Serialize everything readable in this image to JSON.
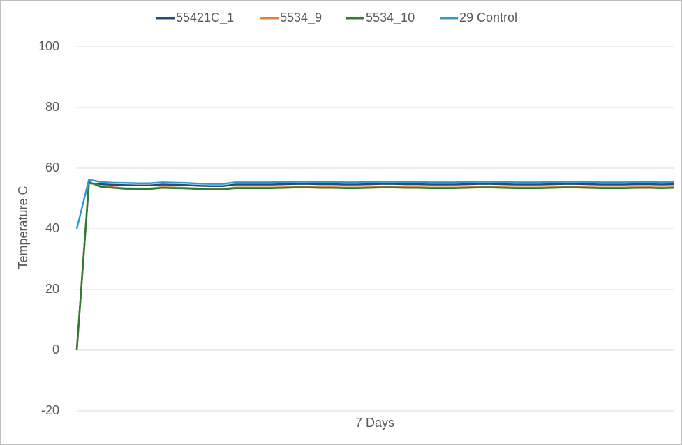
{
  "chart_data": {
    "type": "line",
    "y_label": "Temperature C",
    "x_label": "7 Days",
    "categories": [
      null,
      null,
      null,
      null,
      null,
      null,
      null,
      null,
      null,
      null,
      null,
      null,
      null,
      null,
      null,
      null,
      null,
      null,
      null,
      null,
      null,
      null,
      null,
      null,
      null,
      null,
      null,
      null,
      null,
      null,
      null,
      null,
      null,
      null,
      null,
      null,
      null,
      null,
      null,
      null,
      null,
      null,
      null,
      null,
      null,
      null,
      null,
      null,
      null,
      null
    ],
    "ylim": [
      -20,
      100
    ],
    "yticks": [
      -20,
      0,
      20,
      40,
      60,
      80,
      100
    ],
    "grid": true,
    "legend": "top",
    "series": [
      {
        "name": "55421C_1",
        "color": "#1f4e79",
        "values": [
          0,
          55,
          54.7,
          54.5,
          54.4,
          54.3,
          54.3,
          54.6,
          54.5,
          54.4,
          54.2,
          54.1,
          54.1,
          54.6,
          54.6,
          54.6,
          54.6,
          54.7,
          54.8,
          54.8,
          54.7,
          54.7,
          54.6,
          54.6,
          54.7,
          54.8,
          54.8,
          54.7,
          54.7,
          54.6,
          54.6,
          54.6,
          54.7,
          54.8,
          54.8,
          54.7,
          54.6,
          54.6,
          54.6,
          54.7,
          54.8,
          54.8,
          54.7,
          54.6,
          54.6,
          54.6,
          54.7,
          54.7,
          54.6,
          54.7
        ]
      },
      {
        "name": "5534_9",
        "color": "#ed7d31",
        "values": [
          0,
          55.3,
          54.0,
          53.7,
          53.4,
          53.3,
          53.3,
          53.7,
          53.6,
          53.5,
          53.3,
          53.2,
          53.2,
          53.6,
          53.6,
          53.6,
          53.6,
          53.7,
          53.8,
          53.8,
          53.7,
          53.7,
          53.6,
          53.6,
          53.7,
          53.8,
          53.8,
          53.7,
          53.7,
          53.6,
          53.6,
          53.6,
          53.7,
          53.8,
          53.8,
          53.7,
          53.6,
          53.6,
          53.6,
          53.7,
          53.8,
          53.8,
          53.7,
          53.6,
          53.6,
          53.6,
          53.7,
          53.7,
          53.6,
          53.7
        ]
      },
      {
        "name": "5534_10",
        "color": "#2e7d32",
        "values": [
          0,
          55.5,
          53.8,
          53.5,
          53.2,
          53.1,
          53.1,
          53.5,
          53.4,
          53.3,
          53.1,
          53.0,
          53.0,
          53.4,
          53.4,
          53.4,
          53.4,
          53.5,
          53.6,
          53.6,
          53.5,
          53.5,
          53.4,
          53.4,
          53.5,
          53.6,
          53.6,
          53.5,
          53.5,
          53.4,
          53.4,
          53.4,
          53.5,
          53.6,
          53.6,
          53.5,
          53.4,
          53.4,
          53.4,
          53.5,
          53.6,
          53.6,
          53.5,
          53.4,
          53.4,
          53.4,
          53.5,
          53.5,
          53.4,
          53.5
        ]
      },
      {
        "name": "29 Control",
        "color": "#2e9bd6",
        "values": [
          40,
          56.2,
          55.4,
          55.2,
          55.1,
          55.0,
          55.0,
          55.3,
          55.2,
          55.1,
          54.9,
          54.8,
          54.8,
          55.3,
          55.3,
          55.3,
          55.3,
          55.4,
          55.5,
          55.5,
          55.4,
          55.4,
          55.3,
          55.3,
          55.4,
          55.5,
          55.5,
          55.4,
          55.4,
          55.3,
          55.3,
          55.3,
          55.4,
          55.5,
          55.5,
          55.4,
          55.3,
          55.3,
          55.3,
          55.4,
          55.5,
          55.5,
          55.4,
          55.3,
          55.3,
          55.3,
          55.4,
          55.4,
          55.3,
          55.4
        ]
      }
    ]
  }
}
